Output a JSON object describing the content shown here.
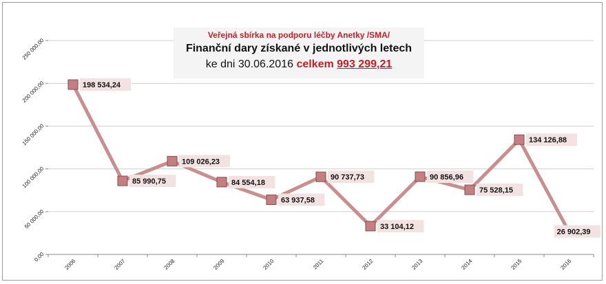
{
  "chart_data": {
    "type": "line",
    "title_lines": [
      "Veřejná sbírka na podporu léčby Anetky /SMA/",
      "Finanční dary získané v jednotlivých letech"
    ],
    "subtitle_prefix": "ke dni 30.06.2016",
    "total_label": "celkem",
    "total_value": "993 299,21",
    "categories": [
      "2006",
      "2007",
      "2008",
      "2009",
      "2010",
      "2011",
      "2012",
      "2013",
      "2014",
      "2015",
      "2016"
    ],
    "values": [
      198534.24,
      85990.75,
      109026.23,
      84554.18,
      63937.58,
      90737.73,
      33104.12,
      90856.96,
      75528.15,
      134126.88,
      26902.39
    ],
    "value_labels": [
      "198 534,24",
      "85 990,75",
      "109 026,23",
      "84 554,18",
      "63 937,58",
      "90 737,73",
      "33 104,12",
      "90 856,96",
      "75 528,15",
      "134 126,88",
      "26 902,39"
    ],
    "ylim": [
      0,
      250000
    ],
    "yticks": [
      0,
      50000,
      100000,
      150000,
      200000,
      250000
    ],
    "ytick_labels": [
      "0,00",
      "50 000,00",
      "100 000,00",
      "150 000,00",
      "200 000,00",
      "250 000,00"
    ],
    "grid": true,
    "legend": "none",
    "colors": {
      "line": "#c98e8e",
      "marker_fill": "#c47f80",
      "marker_stroke": "#8a4a4c",
      "label_bg": "#f2e2e2",
      "grid": "#cfcfcf",
      "title_accent": "#c0202a"
    }
  }
}
